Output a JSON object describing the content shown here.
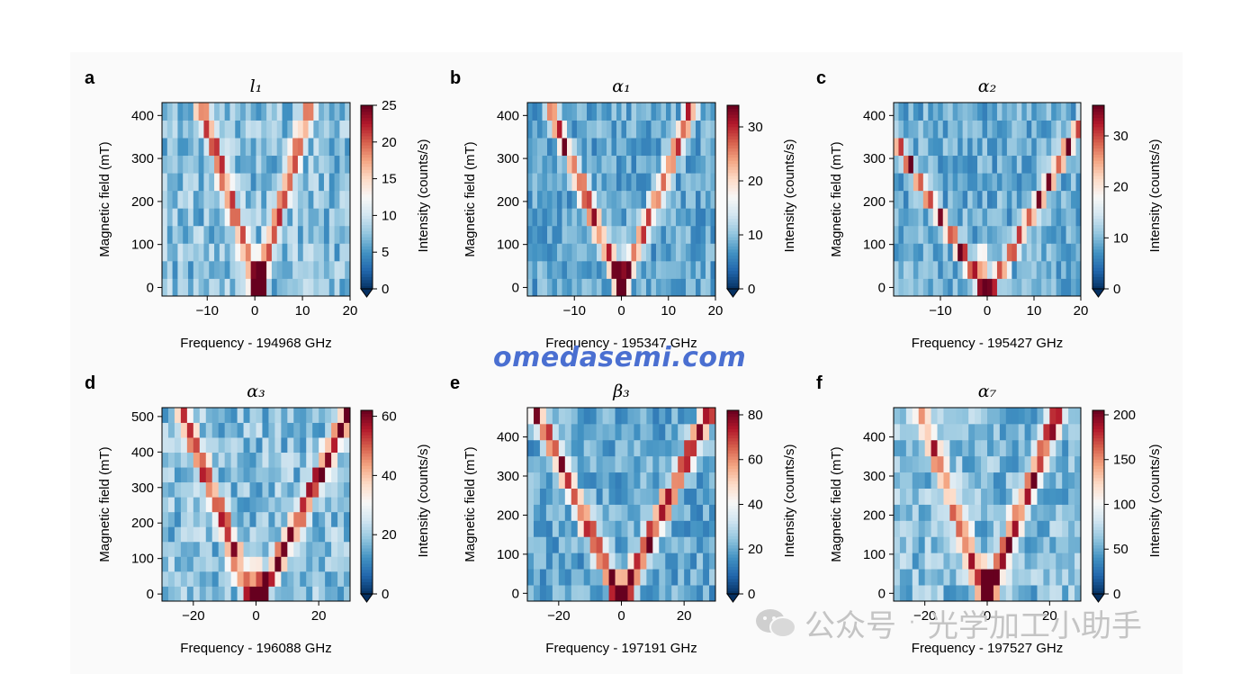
{
  "figure": {
    "colormap": "RdBu_r",
    "watermark": "omedasemi.com",
    "wechat_caption": {
      "name": "公众号",
      "separator": "·",
      "account": "光学加工小助手"
    }
  },
  "chart_data": [
    {
      "type": "heatmap",
      "panel_label": "a",
      "title": "l₁",
      "xlabel": "Frequency - 194968 GHz",
      "ylabel": "Magnetic field (mT)",
      "colorbar_label": "Intensity (counts/s)",
      "xlim": [
        -19.5,
        20
      ],
      "ylim": [
        -20,
        430
      ],
      "xticks": [
        -10,
        0,
        10,
        20
      ],
      "xtick_labels": [
        "−10",
        "0",
        "10",
        "20"
      ],
      "yticks": [
        0,
        100,
        200,
        300,
        400
      ],
      "cbar_range": [
        0,
        25
      ],
      "cbar_ticks": [
        0,
        5,
        10,
        15,
        20,
        25
      ],
      "rows": 11,
      "cols": 36,
      "grid": false,
      "branches": [
        {
          "name": "lower",
          "zero_field_center": 0.5,
          "slope_per_100mT": -2.8,
          "peak": 15
        },
        {
          "name": "upper",
          "zero_field_center": 0.5,
          "slope_per_100mT": 2.6,
          "peak": 14
        }
      ],
      "background": 8,
      "max_point": {
        "x": 1,
        "y": 20,
        "value": 25
      }
    },
    {
      "type": "heatmap",
      "panel_label": "b",
      "title": "α₁",
      "xlabel": "Frequency - 195347 GHz",
      "ylabel": "Magnetic field (mT)",
      "colorbar_label": "Intensity (counts/s)",
      "xlim": [
        -20,
        20
      ],
      "ylim": [
        -20,
        430
      ],
      "xticks": [
        -10,
        0,
        10,
        20
      ],
      "xtick_labels": [
        "−10",
        "0",
        "10",
        "20"
      ],
      "yticks": [
        0,
        100,
        200,
        300,
        400
      ],
      "cbar_range": [
        0,
        34
      ],
      "cbar_ticks": [
        0,
        10,
        20,
        30
      ],
      "rows": 11,
      "cols": 38,
      "grid": false,
      "branches": [
        {
          "name": "lower",
          "zero_field_center": 0,
          "slope_per_100mT": -3.6,
          "peak": 22
        },
        {
          "name": "upper",
          "zero_field_center": 0,
          "slope_per_100mT": 3.6,
          "peak": 20
        }
      ],
      "background": 9,
      "max_point": {
        "x": 0,
        "y": 40,
        "value": 34
      }
    },
    {
      "type": "heatmap",
      "panel_label": "c",
      "title": "α₂",
      "xlabel": "Frequency - 195427 GHz",
      "ylabel": "Magnetic field (mT)",
      "colorbar_label": "Intensity (counts/s)",
      "xlim": [
        -20,
        20
      ],
      "ylim": [
        -20,
        430
      ],
      "xticks": [
        -10,
        0,
        10,
        20
      ],
      "xtick_labels": [
        "−10",
        "0",
        "10",
        "20"
      ],
      "yticks": [
        0,
        100,
        200,
        300,
        400
      ],
      "cbar_range": [
        0,
        36
      ],
      "cbar_ticks": [
        0,
        10,
        20,
        30
      ],
      "rows": 11,
      "cols": 38,
      "grid": false,
      "branches": [
        {
          "name": "lower",
          "zero_field_center": -1,
          "slope_per_100mT": -5.5,
          "peak": 24
        },
        {
          "name": "upper",
          "zero_field_center": 1,
          "slope_per_100mT": 5.0,
          "peak": 22
        }
      ],
      "background": 10,
      "max_point": {
        "x": -1,
        "y": 40,
        "value": 36
      }
    },
    {
      "type": "heatmap",
      "panel_label": "d",
      "title": "α₃",
      "xlabel": "Frequency - 196088 GHz",
      "ylabel": "Magnetic field (mT)",
      "colorbar_label": "Intensity (counts/s)",
      "xlim": [
        -30,
        30
      ],
      "ylim": [
        -20,
        525
      ],
      "xticks": [
        -20,
        0,
        20
      ],
      "xtick_labels": [
        "−20",
        "0",
        "20"
      ],
      "yticks": [
        0,
        100,
        200,
        300,
        400,
        500
      ],
      "cbar_range": [
        0,
        62
      ],
      "cbar_ticks": [
        0,
        20,
        40,
        60
      ],
      "rows": 13,
      "cols": 30,
      "grid": false,
      "branches": [
        {
          "name": "lower",
          "zero_field_center": -2,
          "slope_per_100mT": -4.2,
          "peak": 36
        },
        {
          "name": "upper",
          "zero_field_center": 2,
          "slope_per_100mT": 5.4,
          "peak": 44
        }
      ],
      "background": 20,
      "max_point": {
        "x": 0,
        "y": 40,
        "value": 62
      }
    },
    {
      "type": "heatmap",
      "panel_label": "e",
      "title": "β₃",
      "xlabel": "Frequency - 197191 GHz",
      "ylabel": "Magnetic field (mT)",
      "colorbar_label": "Intensity (counts/s)",
      "xlim": [
        -30,
        30
      ],
      "ylim": [
        -20,
        475
      ],
      "xticks": [
        -20,
        0,
        20
      ],
      "xtick_labels": [
        "−20",
        "0",
        "20"
      ],
      "yticks": [
        0,
        100,
        200,
        300,
        400
      ],
      "cbar_range": [
        0,
        82
      ],
      "cbar_ticks": [
        0,
        20,
        40,
        60,
        80
      ],
      "rows": 12,
      "cols": 30,
      "grid": false,
      "branches": [
        {
          "name": "lower",
          "zero_field_center": -1,
          "slope_per_100mT": -5.6,
          "peak": 55
        },
        {
          "name": "upper",
          "zero_field_center": 1,
          "slope_per_100mT": 5.8,
          "peak": 62
        }
      ],
      "background": 22,
      "max_point": {
        "x": 0,
        "y": 0,
        "value": 82
      }
    },
    {
      "type": "heatmap",
      "panel_label": "f",
      "title": "α₇",
      "xlabel": "Frequency - 197527 GHz",
      "ylabel": "Magnetic field (mT)",
      "colorbar_label": "Intensity (counts/s)",
      "xlim": [
        -30,
        30
      ],
      "ylim": [
        -20,
        475
      ],
      "xticks": [
        -20,
        0,
        20
      ],
      "xtick_labels": [
        "−20",
        "0",
        "20"
      ],
      "yticks": [
        0,
        100,
        200,
        300,
        400
      ],
      "cbar_range": [
        0,
        205
      ],
      "cbar_ticks": [
        0,
        50,
        100,
        150,
        200
      ],
      "rows": 12,
      "cols": 30,
      "grid": false,
      "branches": [
        {
          "name": "lower",
          "zero_field_center": -1,
          "slope_per_100mT": -4.4,
          "peak": 110
        },
        {
          "name": "upper",
          "zero_field_center": 1,
          "slope_per_100mT": 4.6,
          "peak": 130
        }
      ],
      "background": 65,
      "max_point": {
        "x": 0,
        "y": 40,
        "value": 205
      }
    }
  ]
}
